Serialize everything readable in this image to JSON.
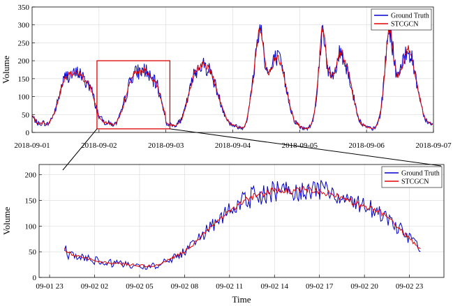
{
  "chart_data": [
    {
      "type": "line",
      "ylabel": "Volume",
      "xlabel": "",
      "ylim": [
        0,
        350
      ],
      "yticks": [
        0,
        50,
        100,
        150,
        200,
        250,
        300,
        350
      ],
      "x_tick_labels": [
        "2018-09-01",
        "2018-09-02",
        "2018-09-03",
        "2018-09-04",
        "2018-09-05",
        "2018-09-06",
        "2018-09-07"
      ],
      "x_tick_days": [
        0,
        1,
        2,
        3,
        4,
        5,
        6
      ],
      "grid": true,
      "legend_position": "top-right",
      "series": [
        {
          "name": "Ground Truth",
          "color": "#0000cc"
        },
        {
          "name": "STCGCN",
          "color": "#dd0000"
        }
      ],
      "highlight_box": {
        "x_days": [
          0.97,
          2.06
        ],
        "y": [
          10,
          200
        ],
        "color": "#dd0000"
      },
      "daily_profile": {
        "hours": [
          0,
          2,
          3,
          4,
          5,
          6,
          7,
          8,
          9,
          10,
          11,
          12,
          13,
          14,
          15,
          16,
          17,
          18,
          19,
          20,
          21,
          22,
          23,
          24
        ],
        "days": [
          [
            45,
            25,
            24,
            28,
            22,
            25,
            40,
            55,
            80,
            110,
            140,
            155,
            160,
            162,
            160,
            165,
            168,
            155,
            140,
            138,
            125,
            100,
            70,
            45
          ],
          [
            45,
            28,
            27,
            25,
            22,
            24,
            38,
            55,
            85,
            110,
            140,
            160,
            165,
            170,
            168,
            175,
            172,
            155,
            145,
            140,
            130,
            100,
            70,
            45
          ],
          [
            25,
            22,
            18,
            25,
            30,
            42,
            70,
            100,
            130,
            160,
            175,
            185,
            190,
            185,
            180,
            170,
            150,
            125,
            100,
            75,
            55,
            35,
            25,
            20
          ],
          [
            20,
            15,
            12,
            15,
            35,
            80,
            130,
            200,
            270,
            295,
            240,
            175,
            165,
            180,
            205,
            210,
            195,
            170,
            130,
            95,
            60,
            35,
            25,
            20
          ],
          [
            15,
            10,
            12,
            20,
            45,
            100,
            190,
            290,
            260,
            180,
            155,
            160,
            175,
            215,
            225,
            200,
            180,
            150,
            110,
            75,
            45,
            25,
            20,
            15
          ],
          [
            15,
            10,
            12,
            25,
            55,
            120,
            220,
            295,
            265,
            190,
            160,
            165,
            190,
            225,
            235,
            210,
            180,
            140,
            100,
            65,
            40,
            30,
            25,
            20
          ]
        ]
      }
    },
    {
      "type": "line",
      "ylabel": "Volume",
      "xlabel": "Time",
      "ylim": [
        0,
        220
      ],
      "yticks": [
        0,
        50,
        100,
        150,
        200
      ],
      "x_tick_labels": [
        "09-01 23",
        "09-02 02",
        "09-02 05",
        "09-02 08",
        "09-02 11",
        "09-02 14",
        "09-02 17",
        "09-02 20",
        "09-02 23"
      ],
      "x_tick_hours": [
        -1,
        2,
        5,
        8,
        11,
        14,
        17,
        20,
        23
      ],
      "xlim_hours": [
        -1.7,
        25.3
      ],
      "grid": true,
      "legend_position": "top-right",
      "series": [
        {
          "name": "Ground Truth",
          "color": "#0000cc"
        },
        {
          "name": "STCGCN",
          "color": "#dd0000"
        }
      ],
      "trend": {
        "hours": [
          0,
          0.5,
          1,
          2,
          3,
          4,
          5,
          6,
          7,
          8,
          9,
          10,
          11,
          12,
          13,
          14,
          15,
          16,
          17,
          18,
          19,
          20,
          21,
          22,
          23,
          23.7
        ],
        "values": [
          55,
          45,
          40,
          33,
          28,
          26,
          23,
          22,
          35,
          50,
          75,
          105,
          130,
          150,
          162,
          168,
          168,
          172,
          170,
          160,
          148,
          138,
          128,
          105,
          75,
          55
        ]
      }
    }
  ]
}
